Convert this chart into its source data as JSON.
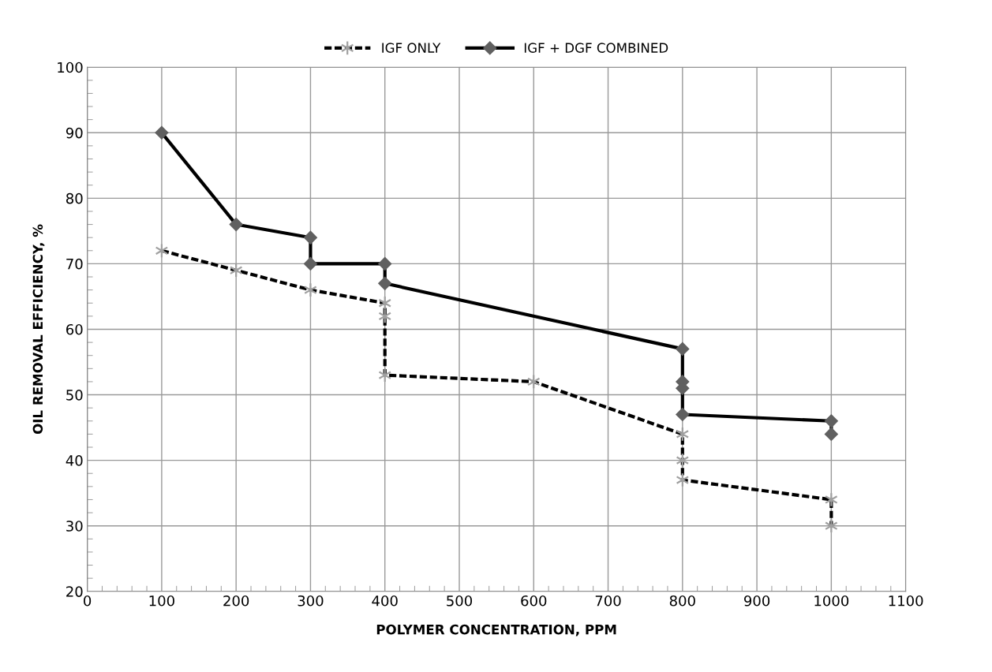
{
  "chart_data": {
    "type": "line",
    "xlabel": "POLYMER CONCENTRATION, PPM",
    "ylabel": "OIL REMOVAL EFFICIENCY, %",
    "xlim": [
      0,
      1100
    ],
    "xticks": [
      0,
      100,
      200,
      300,
      400,
      500,
      600,
      700,
      800,
      900,
      1000,
      1100
    ],
    "ylim": [
      20,
      100
    ],
    "yticks": [
      20,
      30,
      40,
      50,
      60,
      70,
      80,
      90,
      100
    ],
    "grid": true,
    "legend": "top",
    "series": [
      {
        "name": "IGF ONLY",
        "color": "#000000",
        "line_style": "dashed",
        "marker": "cross",
        "x": [
          100,
          200,
          300,
          400,
          400,
          400,
          600,
          800,
          800,
          800,
          1000,
          1000
        ],
        "values": [
          72,
          69,
          66,
          64,
          62,
          53,
          52,
          44,
          40,
          37,
          34,
          30
        ]
      },
      {
        "name": "IGF + DGF COMBINED",
        "color": "#000000",
        "line_style": "solid",
        "marker": "diamond",
        "x": [
          100,
          200,
          300,
          300,
          400,
          400,
          800,
          800,
          800,
          800,
          1000,
          1000
        ],
        "values": [
          90,
          76,
          74,
          70,
          70,
          67,
          57,
          52,
          51,
          47,
          46,
          44
        ]
      }
    ]
  }
}
